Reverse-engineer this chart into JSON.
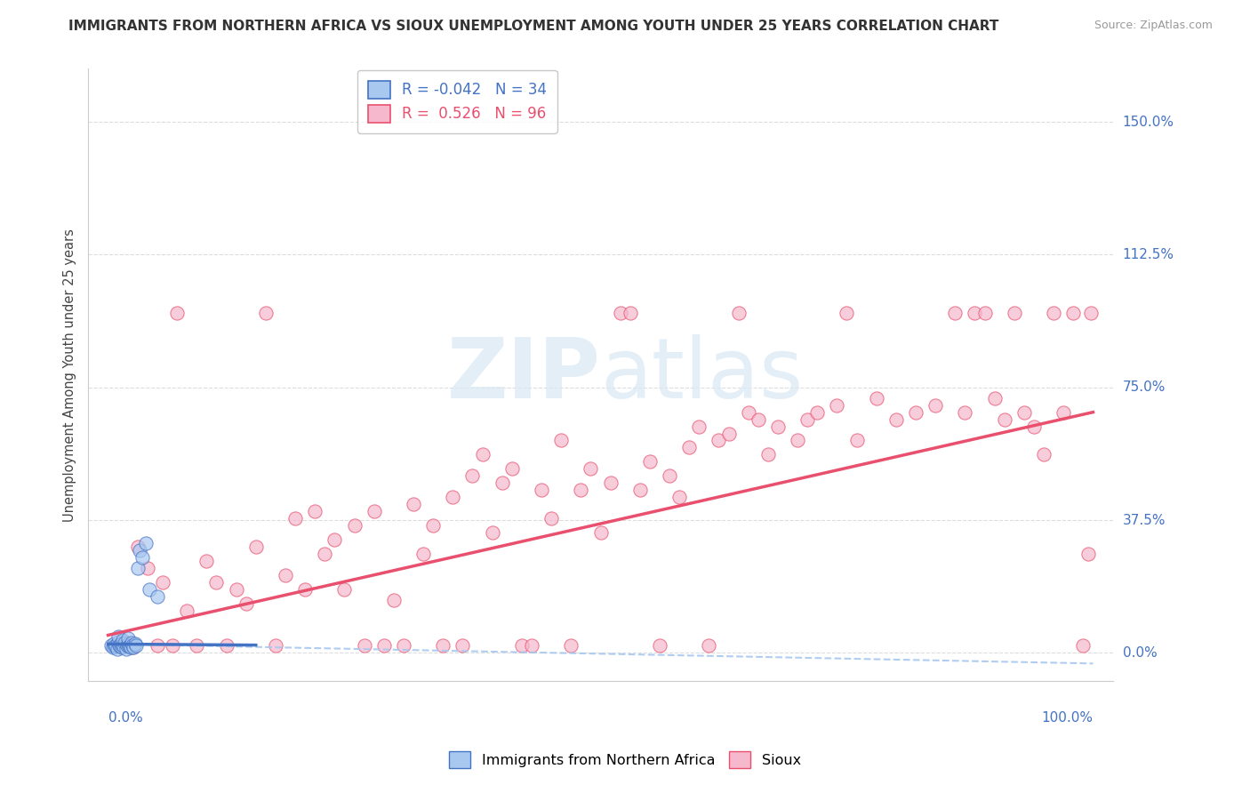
{
  "title": "IMMIGRANTS FROM NORTHERN AFRICA VS SIOUX UNEMPLOYMENT AMONG YOUTH UNDER 25 YEARS CORRELATION CHART",
  "source": "Source: ZipAtlas.com",
  "ylabel": "Unemployment Among Youth under 25 years",
  "ytick_labels": [
    "0.0%",
    "37.5%",
    "75.0%",
    "112.5%",
    "150.0%"
  ],
  "ytick_values": [
    0.0,
    0.375,
    0.75,
    1.125,
    1.5
  ],
  "xlim": [
    -0.02,
    1.02
  ],
  "ylim": [
    -0.08,
    1.65
  ],
  "color_blue": "#A8C8F0",
  "color_pink": "#F5B8CC",
  "line_blue_solid": "#4472C4",
  "line_pink_solid": "#E8506E",
  "line_blue_dashed": "#A8C8F0",
  "title_color": "#333333",
  "source_color": "#999999",
  "axis_label_color": "#4472C4",
  "R_blue": -0.042,
  "N_blue": 34,
  "R_pink": 0.526,
  "N_pink": 96,
  "blue_x": [
    0.003,
    0.005,
    0.006,
    0.007,
    0.008,
    0.009,
    0.01,
    0.01,
    0.011,
    0.012,
    0.013,
    0.014,
    0.015,
    0.015,
    0.016,
    0.017,
    0.018,
    0.019,
    0.02,
    0.02,
    0.021,
    0.022,
    0.023,
    0.024,
    0.025,
    0.026,
    0.027,
    0.028,
    0.03,
    0.032,
    0.035,
    0.038,
    0.042,
    0.05
  ],
  "blue_y": [
    0.02,
    0.015,
    0.025,
    0.018,
    0.022,
    0.012,
    0.03,
    0.045,
    0.02,
    0.018,
    0.025,
    0.015,
    0.022,
    0.035,
    0.018,
    0.028,
    0.012,
    0.02,
    0.025,
    0.04,
    0.018,
    0.022,
    0.015,
    0.028,
    0.02,
    0.015,
    0.025,
    0.02,
    0.24,
    0.29,
    0.27,
    0.31,
    0.18,
    0.16
  ],
  "pink_x": [
    0.01,
    0.02,
    0.025,
    0.03,
    0.04,
    0.05,
    0.055,
    0.065,
    0.07,
    0.08,
    0.09,
    0.1,
    0.11,
    0.12,
    0.13,
    0.14,
    0.15,
    0.16,
    0.17,
    0.18,
    0.19,
    0.2,
    0.21,
    0.22,
    0.23,
    0.24,
    0.25,
    0.26,
    0.27,
    0.28,
    0.29,
    0.3,
    0.31,
    0.32,
    0.33,
    0.34,
    0.35,
    0.36,
    0.37,
    0.38,
    0.39,
    0.4,
    0.41,
    0.42,
    0.43,
    0.44,
    0.45,
    0.46,
    0.47,
    0.48,
    0.49,
    0.5,
    0.51,
    0.52,
    0.53,
    0.54,
    0.55,
    0.56,
    0.57,
    0.58,
    0.59,
    0.6,
    0.61,
    0.62,
    0.63,
    0.64,
    0.65,
    0.66,
    0.67,
    0.68,
    0.7,
    0.71,
    0.72,
    0.74,
    0.75,
    0.76,
    0.78,
    0.8,
    0.82,
    0.84,
    0.86,
    0.87,
    0.88,
    0.89,
    0.9,
    0.91,
    0.92,
    0.93,
    0.94,
    0.95,
    0.96,
    0.97,
    0.98,
    0.99,
    0.995,
    0.998
  ],
  "pink_y": [
    0.02,
    0.02,
    0.015,
    0.3,
    0.24,
    0.02,
    0.2,
    0.02,
    0.96,
    0.12,
    0.02,
    0.26,
    0.2,
    0.02,
    0.18,
    0.14,
    0.3,
    0.96,
    0.02,
    0.22,
    0.38,
    0.18,
    0.4,
    0.28,
    0.32,
    0.18,
    0.36,
    0.02,
    0.4,
    0.02,
    0.15,
    0.02,
    0.42,
    0.28,
    0.36,
    0.02,
    0.44,
    0.02,
    0.5,
    0.56,
    0.34,
    0.48,
    0.52,
    0.02,
    0.02,
    0.46,
    0.38,
    0.6,
    0.02,
    0.46,
    0.52,
    0.34,
    0.48,
    0.96,
    0.96,
    0.46,
    0.54,
    0.02,
    0.5,
    0.44,
    0.58,
    0.64,
    0.02,
    0.6,
    0.62,
    0.96,
    0.68,
    0.66,
    0.56,
    0.64,
    0.6,
    0.66,
    0.68,
    0.7,
    0.96,
    0.6,
    0.72,
    0.66,
    0.68,
    0.7,
    0.96,
    0.68,
    0.96,
    0.96,
    0.72,
    0.66,
    0.96,
    0.68,
    0.64,
    0.56,
    0.96,
    0.68,
    0.96,
    0.02,
    0.28,
    0.96
  ]
}
